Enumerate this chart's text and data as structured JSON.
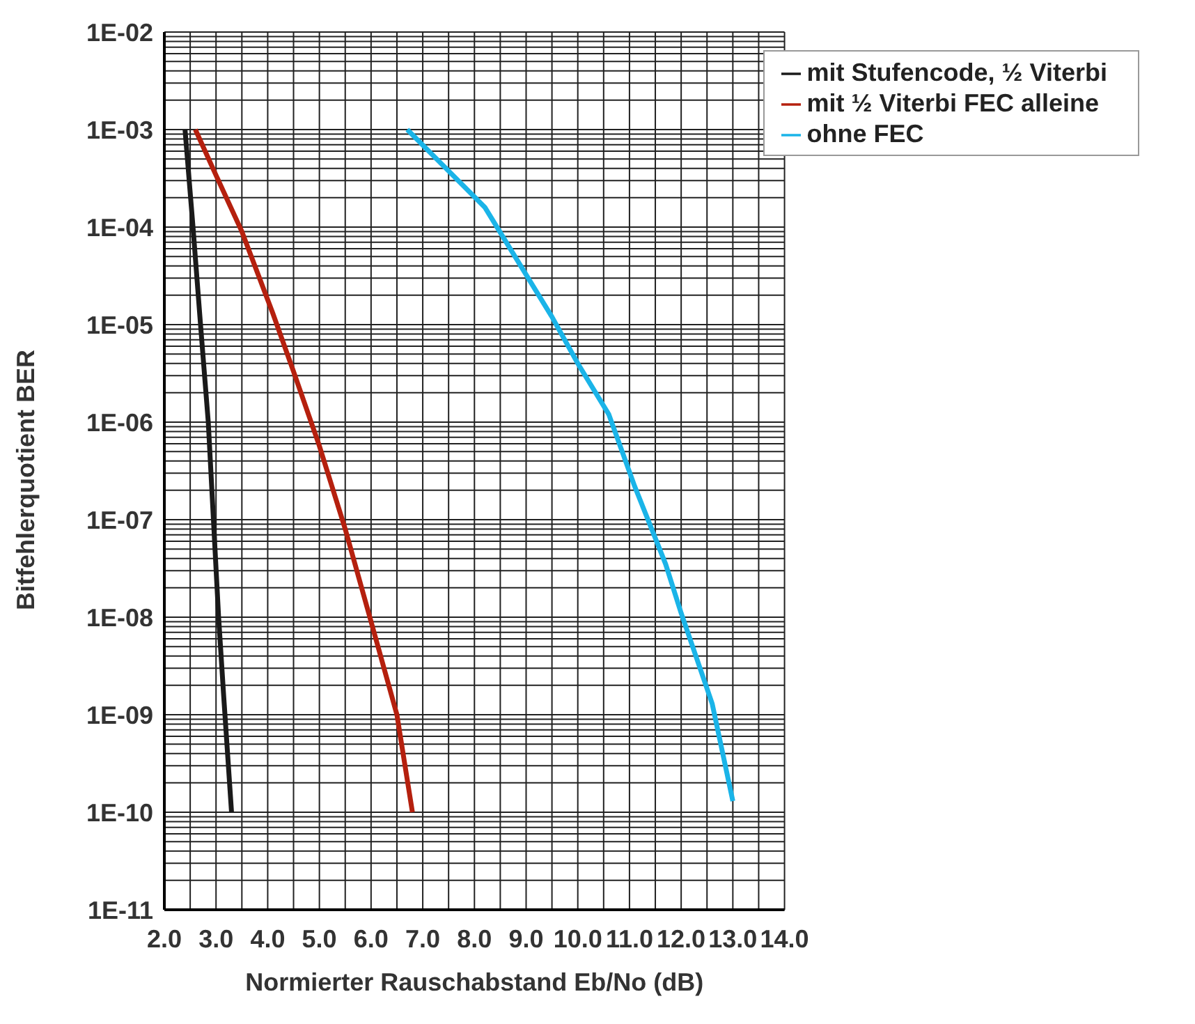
{
  "chart_data": {
    "type": "line",
    "xlabel": "Normierter Rauschabstand Eb/No (dB)",
    "ylabel": "Bitfehlerquotient BER",
    "log": "y",
    "grid": true,
    "legend": "top right",
    "marker": "none",
    "line_style": "solid",
    "xlim": [
      2,
      14
    ],
    "xticks": [
      {
        "value": 2,
        "label": "2.0"
      },
      {
        "value": 2.5,
        "label": null
      },
      {
        "value": 3,
        "label": "3.0"
      },
      {
        "value": 3.5,
        "label": null
      },
      {
        "value": 4,
        "label": "4.0"
      },
      {
        "value": 4.5,
        "label": null
      },
      {
        "value": 5,
        "label": "5.0"
      },
      {
        "value": 5.5,
        "label": null
      },
      {
        "value": 6,
        "label": "6.0"
      },
      {
        "value": 6.5,
        "label": null
      },
      {
        "value": 7,
        "label": "7.0"
      },
      {
        "value": 7.5,
        "label": null
      },
      {
        "value": 8,
        "label": "8.0"
      },
      {
        "value": 8.5,
        "label": null
      },
      {
        "value": 9,
        "label": "9.0"
      },
      {
        "value": 9.5,
        "label": null
      },
      {
        "value": 10,
        "label": "10.0"
      },
      {
        "value": 10.5,
        "label": null
      },
      {
        "value": 11,
        "label": "11.0"
      },
      {
        "value": 11.5,
        "label": null
      },
      {
        "value": 12,
        "label": "12.0"
      },
      {
        "value": 12.5,
        "label": null
      },
      {
        "value": 13,
        "label": "13.0"
      },
      {
        "value": 13.5,
        "label": null
      },
      {
        "value": 14,
        "label": "14.0"
      }
    ],
    "ylim": [
      1e-11,
      0.01
    ],
    "yticks": [
      {
        "value": 1e-11,
        "label": "1E-11"
      },
      {
        "value": 2e-11,
        "label": null
      },
      {
        "value": 3e-11,
        "label": null
      },
      {
        "value": 4e-11,
        "label": null
      },
      {
        "value": 5e-11,
        "label": null
      },
      {
        "value": 6e-11,
        "label": null
      },
      {
        "value": 7e-11,
        "label": null
      },
      {
        "value": 8e-11,
        "label": null
      },
      {
        "value": 9e-11,
        "label": null
      },
      {
        "value": 1e-10,
        "label": "1E-10"
      },
      {
        "value": 2e-10,
        "label": null
      },
      {
        "value": 3e-10,
        "label": null
      },
      {
        "value": 4e-10,
        "label": null
      },
      {
        "value": 5e-10,
        "label": null
      },
      {
        "value": 6e-10,
        "label": null
      },
      {
        "value": 7e-10,
        "label": null
      },
      {
        "value": 8e-10,
        "label": null
      },
      {
        "value": 9e-10,
        "label": null
      },
      {
        "value": 1e-09,
        "label": "1E-09"
      },
      {
        "value": 2e-09,
        "label": null
      },
      {
        "value": 3e-09,
        "label": null
      },
      {
        "value": 4e-09,
        "label": null
      },
      {
        "value": 5e-09,
        "label": null
      },
      {
        "value": 6e-09,
        "label": null
      },
      {
        "value": 7e-09,
        "label": null
      },
      {
        "value": 8e-09,
        "label": null
      },
      {
        "value": 9e-09,
        "label": null
      },
      {
        "value": 1e-08,
        "label": "1E-08"
      },
      {
        "value": 2e-08,
        "label": null
      },
      {
        "value": 3e-08,
        "label": null
      },
      {
        "value": 4e-08,
        "label": null
      },
      {
        "value": 5e-08,
        "label": null
      },
      {
        "value": 6e-08,
        "label": null
      },
      {
        "value": 7e-08,
        "label": null
      },
      {
        "value": 8e-08,
        "label": null
      },
      {
        "value": 9e-08,
        "label": null
      },
      {
        "value": 1e-07,
        "label": "1E-07"
      },
      {
        "value": 2e-07,
        "label": null
      },
      {
        "value": 3e-07,
        "label": null
      },
      {
        "value": 4e-07,
        "label": null
      },
      {
        "value": 5e-07,
        "label": null
      },
      {
        "value": 6e-07,
        "label": null
      },
      {
        "value": 7e-07,
        "label": null
      },
      {
        "value": 8e-07,
        "label": null
      },
      {
        "value": 9e-07,
        "label": null
      },
      {
        "value": 1e-06,
        "label": "1E-06"
      },
      {
        "value": 2e-06,
        "label": null
      },
      {
        "value": 3e-06,
        "label": null
      },
      {
        "value": 4e-06,
        "label": null
      },
      {
        "value": 5e-06,
        "label": null
      },
      {
        "value": 6e-06,
        "label": null
      },
      {
        "value": 7e-06,
        "label": null
      },
      {
        "value": 8e-06,
        "label": null
      },
      {
        "value": 9e-06,
        "label": null
      },
      {
        "value": 1e-05,
        "label": "1E-05"
      },
      {
        "value": 2e-05,
        "label": null
      },
      {
        "value": 3e-05,
        "label": null
      },
      {
        "value": 4e-05,
        "label": null
      },
      {
        "value": 5e-05,
        "label": null
      },
      {
        "value": 6e-05,
        "label": null
      },
      {
        "value": 7e-05,
        "label": null
      },
      {
        "value": 8e-05,
        "label": null
      },
      {
        "value": 9e-05,
        "label": null
      },
      {
        "value": 0.0001,
        "label": "1E-04"
      },
      {
        "value": 0.0002,
        "label": null
      },
      {
        "value": 0.0003,
        "label": null
      },
      {
        "value": 0.0004,
        "label": null
      },
      {
        "value": 0.0005,
        "label": null
      },
      {
        "value": 0.0006,
        "label": null
      },
      {
        "value": 0.0007,
        "label": null
      },
      {
        "value": 0.0008,
        "label": null
      },
      {
        "value": 0.0009,
        "label": null
      },
      {
        "value": 0.001,
        "label": "1E-03"
      },
      {
        "value": 0.002,
        "label": null
      },
      {
        "value": 0.003,
        "label": null
      },
      {
        "value": 0.004,
        "label": null
      },
      {
        "value": 0.005,
        "label": null
      },
      {
        "value": 0.006,
        "label": null
      },
      {
        "value": 0.007,
        "label": null
      },
      {
        "value": 0.008,
        "label": null
      },
      {
        "value": 0.009,
        "label": null
      },
      {
        "value": 0.01,
        "label": "1E-02"
      }
    ],
    "series": [
      {
        "name": "ohne FEC",
        "color": "#1ab4e8",
        "x": [
          6.7,
          8.2,
          9.5,
          10.0,
          10.6,
          11.1,
          11.7,
          12.0,
          12.6,
          13.0
        ],
        "values": [
          0.001,
          0.00016,
          1.2e-05,
          4e-06,
          1.2e-06,
          2.2e-07,
          3.5e-08,
          1.1e-08,
          1.3e-09,
          1.3e-10
        ]
      },
      {
        "name": "mit ½ Viterbi FEC alleine",
        "color": "#b5200e",
        "x": [
          2.6,
          3.0,
          3.5,
          4.1,
          4.5,
          5.0,
          5.5,
          6.0,
          6.5,
          6.8
        ],
        "values": [
          0.001,
          0.00034,
          9e-05,
          1.3e-05,
          3.3e-06,
          5.7e-07,
          8e-08,
          9e-09,
          1e-09,
          1e-10
        ]
      },
      {
        "name": "mit Stufencode, ½ Viterbi",
        "color": "#1a1a1a",
        "x": [
          2.4,
          2.55,
          2.7,
          2.85,
          2.95,
          3.05,
          3.15,
          3.3
        ],
        "values": [
          0.001,
          0.000107,
          1e-05,
          1e-06,
          1e-07,
          1e-08,
          1.5e-09,
          1e-10
        ]
      }
    ]
  }
}
